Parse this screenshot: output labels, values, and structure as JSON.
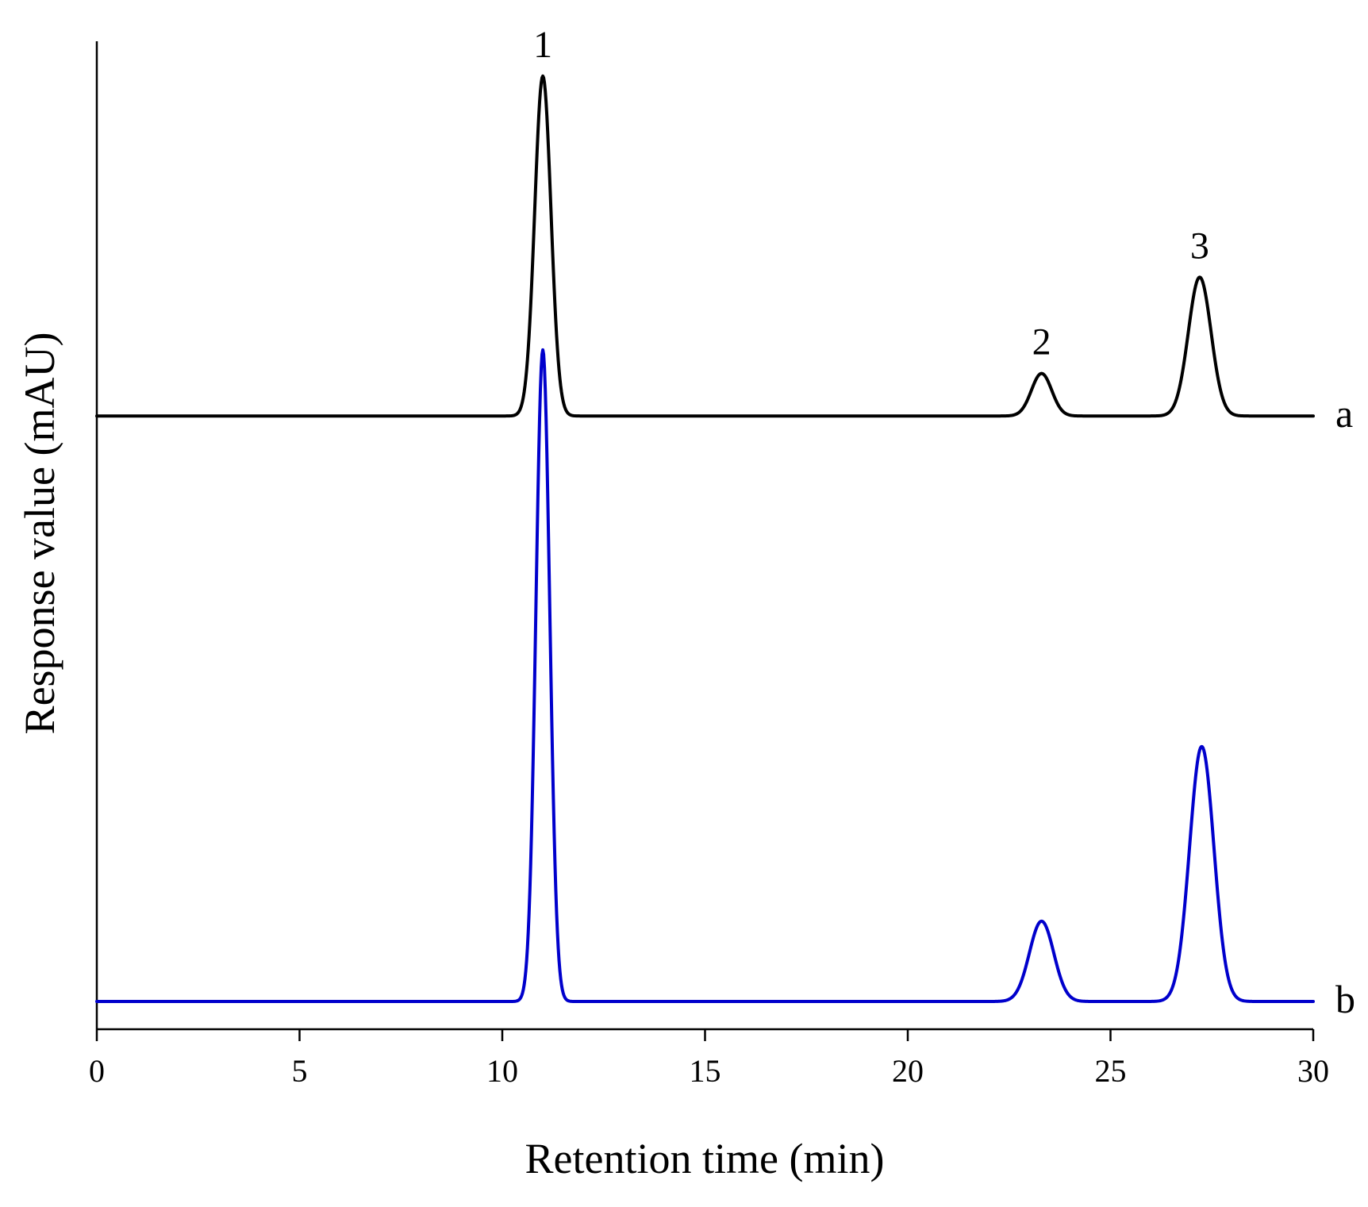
{
  "chart_data": {
    "type": "line",
    "xlabel": "Retention time (min)",
    "ylabel": "Response value (mAU)",
    "xlim": [
      0,
      30
    ],
    "x_ticks": [
      0,
      5,
      10,
      15,
      20,
      25,
      30
    ],
    "grid": false,
    "y_ticks_labeled": false,
    "series": [
      {
        "name": "a",
        "color": "#000000",
        "offset": 0.62,
        "baseline_note": "upper trace",
        "peaks": [
          {
            "rt": 11.0,
            "height": 0.36,
            "sigma": 0.2
          },
          {
            "rt": 23.3,
            "height": 0.045,
            "sigma": 0.25
          },
          {
            "rt": 27.2,
            "height": 0.147,
            "sigma": 0.28
          }
        ]
      },
      {
        "name": "b",
        "color": "#0000cc",
        "offset": 0.0,
        "peaks": [
          {
            "rt": 11.0,
            "height": 0.69,
            "sigma": 0.17
          },
          {
            "rt": 23.3,
            "height": 0.085,
            "sigma": 0.3
          },
          {
            "rt": 27.25,
            "height": 0.27,
            "sigma": 0.3
          }
        ]
      }
    ],
    "peak_labels": [
      {
        "text": "1",
        "rt": 11.0
      },
      {
        "text": "2",
        "rt": 23.3
      },
      {
        "text": "3",
        "rt": 27.2
      }
    ]
  }
}
